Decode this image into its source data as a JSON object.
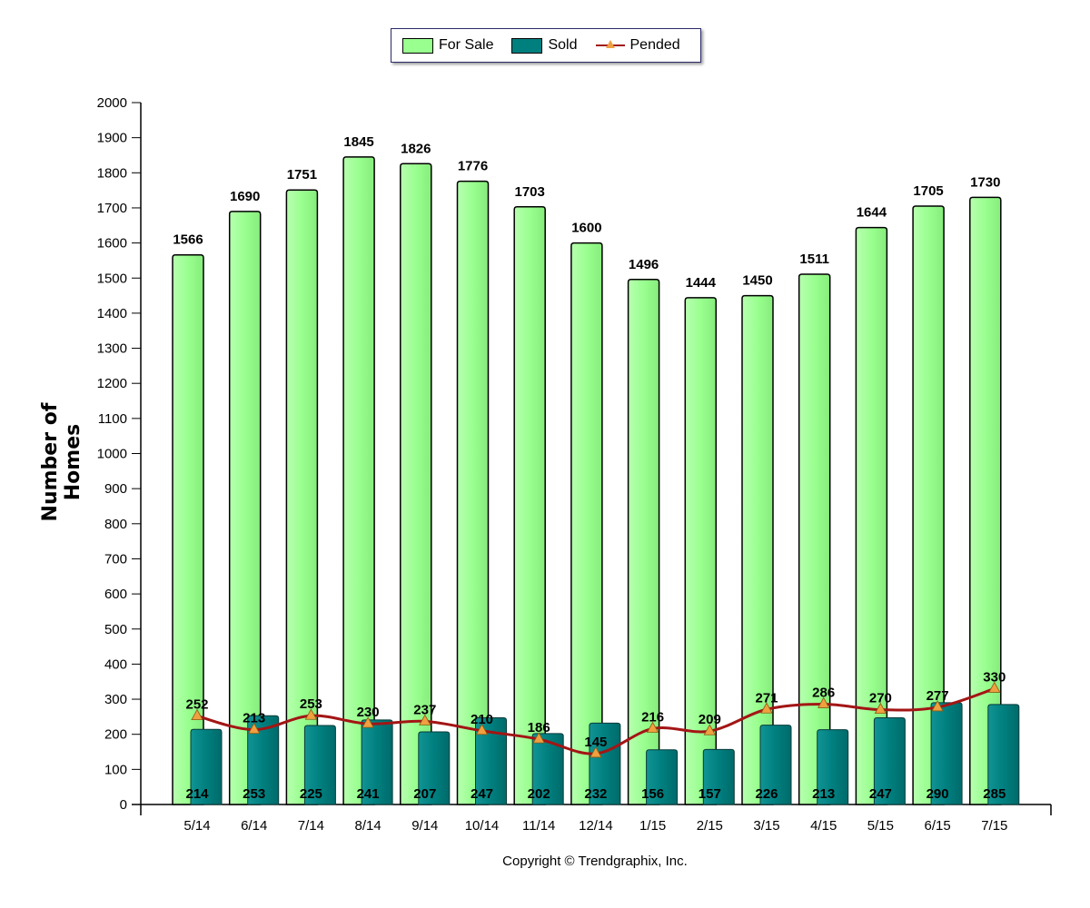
{
  "chart_data": {
    "type": "bar",
    "title": "",
    "ylabel": "Number of Homes",
    "xlabel": "",
    "ylim": [
      0,
      2000
    ],
    "y_ticks": [
      0,
      100,
      200,
      300,
      400,
      500,
      600,
      700,
      800,
      900,
      1000,
      1100,
      1200,
      1300,
      1400,
      1500,
      1600,
      1700,
      1800,
      1900,
      2000
    ],
    "categories": [
      "5/14",
      "6/14",
      "7/14",
      "8/14",
      "9/14",
      "10/14",
      "11/14",
      "12/14",
      "1/15",
      "2/15",
      "3/15",
      "4/15",
      "5/15",
      "6/15",
      "7/15"
    ],
    "grid": false,
    "legend_position": "top-center",
    "series": [
      {
        "name": "For Sale",
        "kind": "bar",
        "color": "#99ff8f",
        "values": [
          1566,
          1690,
          1751,
          1845,
          1826,
          1776,
          1703,
          1600,
          1496,
          1444,
          1450,
          1511,
          1644,
          1705,
          1730
        ]
      },
      {
        "name": "Sold",
        "kind": "bar",
        "color": "#007f7f",
        "values": [
          214,
          253,
          225,
          241,
          207,
          247,
          202,
          232,
          156,
          157,
          226,
          213,
          247,
          290,
          285
        ]
      },
      {
        "name": "Pended",
        "kind": "line",
        "color": "#a31515",
        "marker_color": "#f0a040",
        "values": [
          252,
          213,
          253,
          230,
          237,
          210,
          186,
          145,
          216,
          209,
          271,
          286,
          270,
          277,
          330
        ]
      }
    ]
  },
  "copyright": "Copyright © Trendgraphix, Inc."
}
